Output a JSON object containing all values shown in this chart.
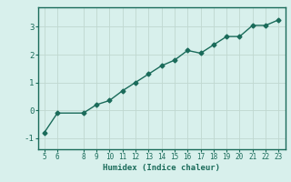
{
  "x": [
    5,
    6,
    8,
    9,
    10,
    11,
    12,
    13,
    14,
    15,
    16,
    17,
    18,
    19,
    20,
    21,
    22,
    23
  ],
  "y": [
    -0.8,
    -0.1,
    -0.1,
    0.2,
    0.35,
    0.7,
    1.0,
    1.3,
    1.6,
    1.8,
    2.15,
    2.05,
    2.35,
    2.65,
    2.65,
    3.05,
    3.05,
    3.25
  ],
  "line_color": "#1a6b5a",
  "bg_color": "#d8f0ec",
  "grid_color": "#c0d8d0",
  "xlabel": "Humidex (Indice chaleur)",
  "xlim": [
    4.5,
    23.5
  ],
  "ylim": [
    -1.4,
    3.7
  ],
  "xticks": [
    5,
    6,
    8,
    9,
    10,
    11,
    12,
    13,
    14,
    15,
    16,
    17,
    18,
    19,
    20,
    21,
    22,
    23
  ],
  "yticks": [
    -1,
    0,
    1,
    2,
    3
  ],
  "marker_size": 2.5,
  "linewidth": 1.0
}
